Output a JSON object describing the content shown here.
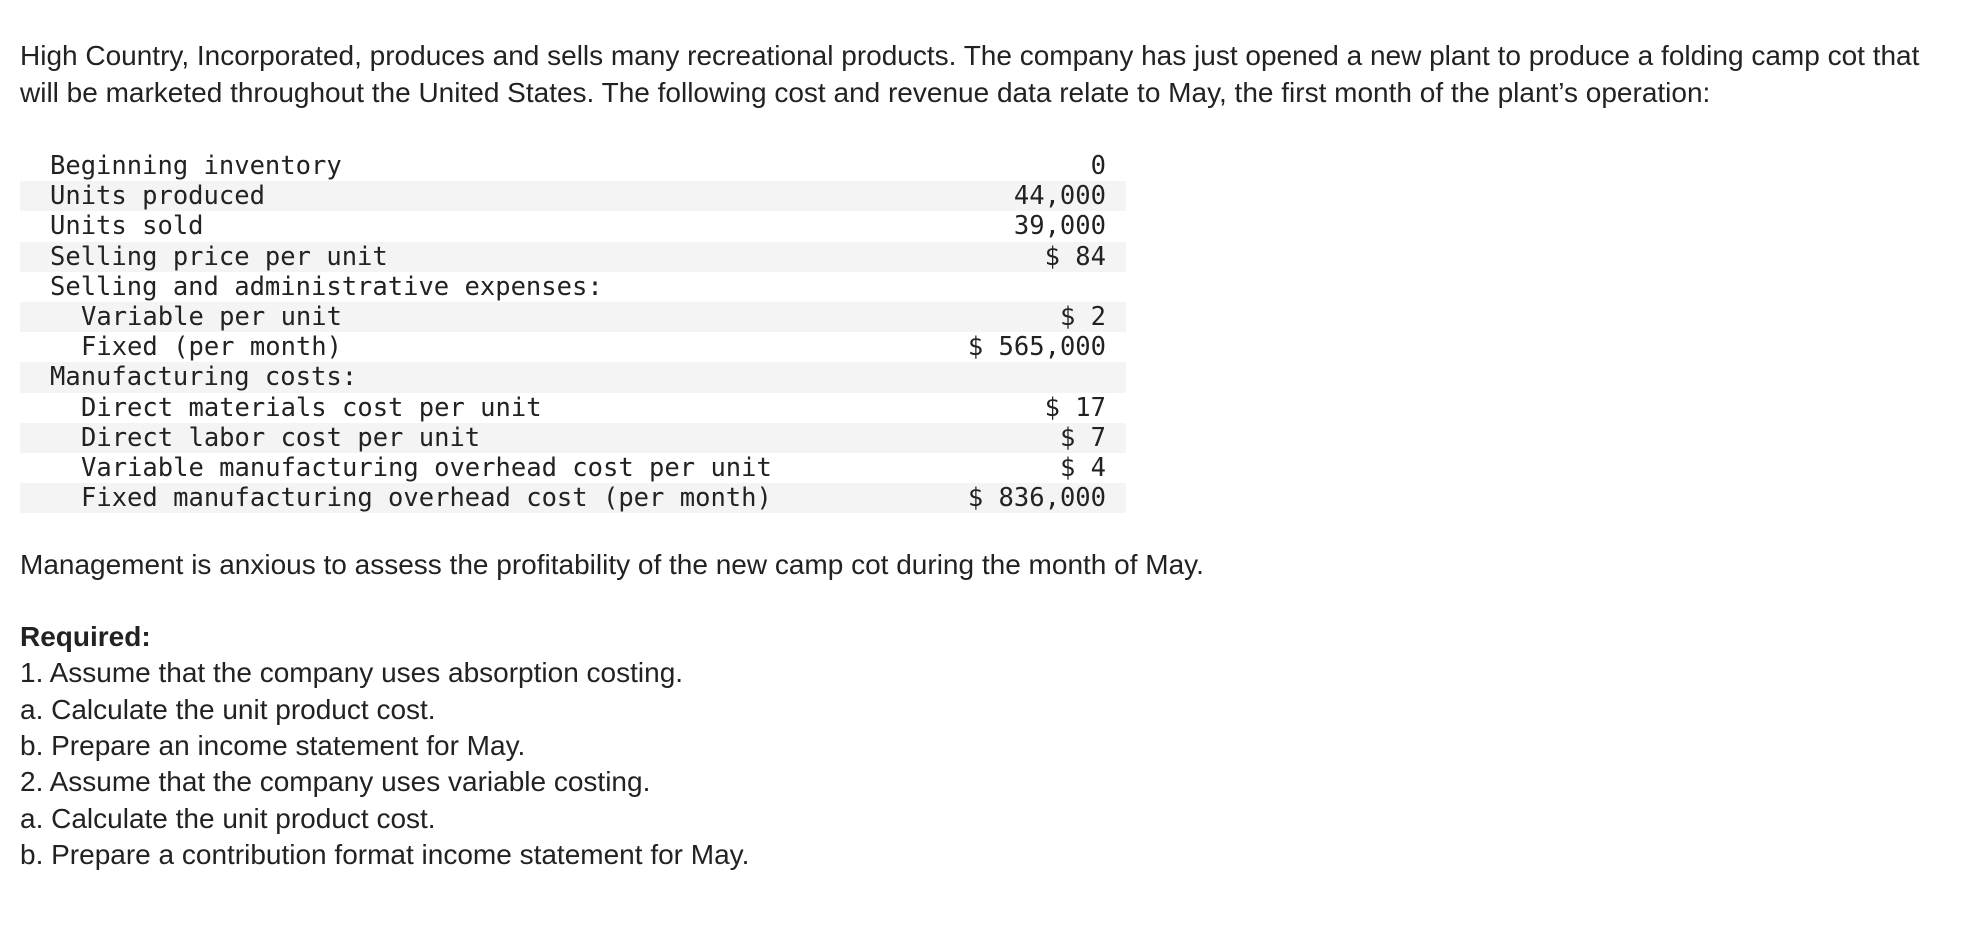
{
  "intro": "High Country, Incorporated, produces and sells many recreational products. The company has just opened a new plant to produce a folding camp cot that will be marketed throughout the United States. The following cost and revenue data relate to May, the first month of the plant’s operation:",
  "table": [
    {
      "label": "Beginning inventory",
      "value": "0",
      "indent": false
    },
    {
      "label": "Units produced",
      "value": "44,000",
      "indent": false
    },
    {
      "label": "Units sold",
      "value": "39,000",
      "indent": false
    },
    {
      "label": "Selling price per unit",
      "value": "$ 84",
      "indent": false
    },
    {
      "label": "Selling and administrative expenses:",
      "value": "",
      "indent": false
    },
    {
      "label": "Variable per unit",
      "value": "$ 2",
      "indent": true
    },
    {
      "label": "Fixed (per month)",
      "value": "$ 565,000",
      "indent": true
    },
    {
      "label": "Manufacturing costs:",
      "value": "",
      "indent": false
    },
    {
      "label": "Direct materials cost per unit",
      "value": "$ 17",
      "indent": true
    },
    {
      "label": "Direct labor cost per unit",
      "value": "$ 7",
      "indent": true
    },
    {
      "label": "Variable manufacturing overhead cost per unit",
      "value": "$ 4",
      "indent": true
    },
    {
      "label": "Fixed manufacturing overhead cost (per month)",
      "value": "$ 836,000",
      "indent": true
    }
  ],
  "management_text": "Management is anxious to assess the profitability of the new camp cot during the month of May.",
  "required_heading": "Required:",
  "requirements": [
    "1. Assume that the company uses absorption costing.",
    "a. Calculate the unit product cost.",
    "b. Prepare an income statement for May.",
    "2. Assume that the company uses variable costing.",
    "a. Calculate the unit product cost.",
    "b. Prepare a contribution format income statement for May."
  ]
}
